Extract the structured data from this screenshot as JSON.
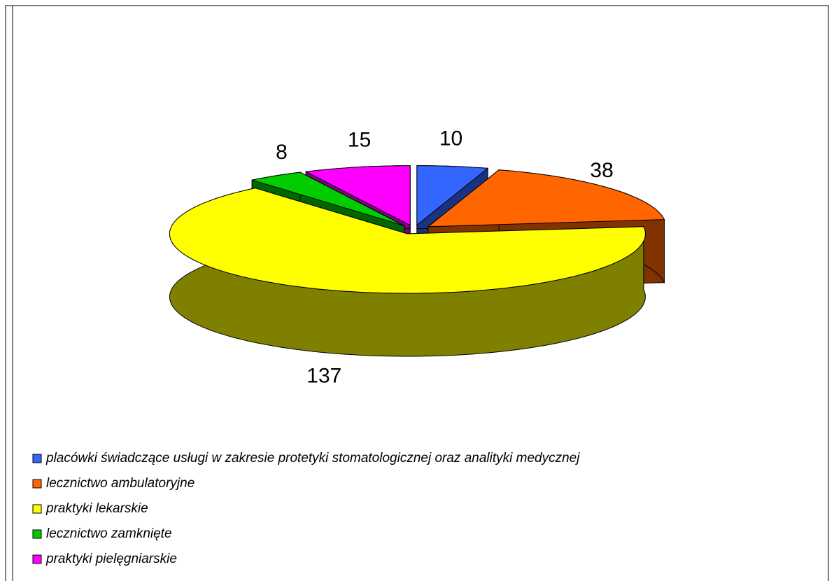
{
  "chart_data": {
    "type": "pie3d",
    "categories": [
      "placówki świadczące usługi  w zakresie protetyki stomatologicznej oraz analityki medycznej",
      "lecznictwo ambulatoryjne",
      "praktyki lekarskie",
      "lecznictwo zamknięte",
      "praktyki pielęgniarskie"
    ],
    "values": [
      10,
      38,
      137,
      8,
      15
    ],
    "colors": [
      "#3366ff",
      "#ff6600",
      "#ffff00",
      "#00cc00",
      "#ff00ff"
    ],
    "exploded": true
  }
}
